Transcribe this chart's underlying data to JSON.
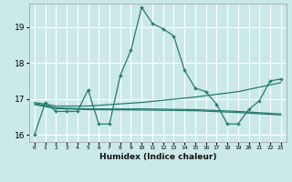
{
  "xlabel": "Humidex (Indice chaleur)",
  "ylabel": "",
  "bg_color": "#cce9e9",
  "grid_color": "#ffffff",
  "line_color": "#257a6e",
  "xlim": [
    -0.5,
    23.5
  ],
  "ylim": [
    15.8,
    19.65
  ],
  "yticks": [
    16,
    17,
    18,
    19
  ],
  "xtick_labels": [
    "0",
    "1",
    "2",
    "3",
    "4",
    "5",
    "6",
    "7",
    "8",
    "9",
    "10",
    "11",
    "12",
    "13",
    "14",
    "15",
    "16",
    "17",
    "18",
    "19",
    "20",
    "21",
    "22",
    "23"
  ],
  "line1_x": [
    0,
    1,
    2,
    3,
    4,
    5,
    6,
    7,
    8,
    9,
    10,
    11,
    12,
    13,
    14,
    15,
    16,
    17,
    18,
    19,
    20,
    21,
    22,
    23
  ],
  "line1_y": [
    16.0,
    16.9,
    16.65,
    16.65,
    16.65,
    17.25,
    16.3,
    16.3,
    17.65,
    18.35,
    19.55,
    19.1,
    18.95,
    18.75,
    17.8,
    17.3,
    17.2,
    16.85,
    16.3,
    16.3,
    16.7,
    16.95,
    17.5,
    17.55
  ],
  "line2_x": [
    0,
    2,
    5,
    10,
    15,
    19,
    23
  ],
  "line2_y": [
    16.9,
    16.8,
    16.8,
    16.9,
    17.05,
    17.2,
    17.45
  ],
  "line3_x": [
    0,
    2,
    5,
    10,
    15,
    19,
    23
  ],
  "line3_y": [
    16.87,
    16.75,
    16.72,
    16.72,
    16.7,
    16.65,
    16.58
  ],
  "line4_x": [
    0,
    2,
    5,
    10,
    15,
    19,
    23
  ],
  "line4_y": [
    16.84,
    16.73,
    16.7,
    16.69,
    16.67,
    16.62,
    16.55
  ]
}
